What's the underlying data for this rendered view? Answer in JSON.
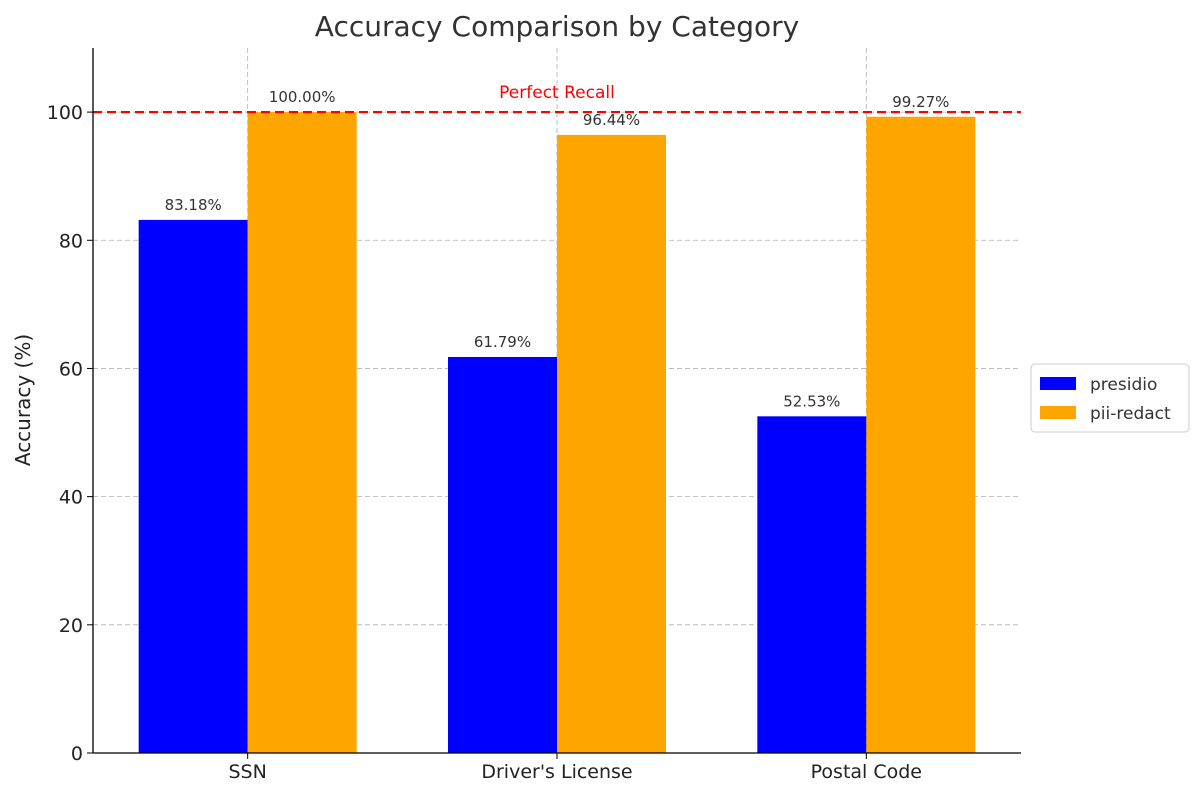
{
  "chart_data": {
    "type": "bar",
    "title": "Accuracy Comparison by Category",
    "xlabel": "",
    "ylabel": "Accuracy (%)",
    "ylim": [
      0,
      110
    ],
    "yticks": [
      0,
      20,
      40,
      60,
      80,
      100
    ],
    "grid": true,
    "legend_position": "right",
    "categories": [
      "SSN",
      "Driver's License",
      "Postal Code"
    ],
    "series": [
      {
        "name": "presidio",
        "color": "#0000ff",
        "values": [
          83.18,
          61.79,
          52.53
        ],
        "labels": [
          "83.18%",
          "61.79%",
          "52.53%"
        ]
      },
      {
        "name": "pii-redact",
        "color": "#ffa500",
        "values": [
          100.0,
          96.44,
          99.27
        ],
        "labels": [
          "100.00%",
          "96.44%",
          "99.27%"
        ]
      }
    ],
    "reference_line": {
      "value": 100,
      "label": "Perfect Recall",
      "color": "#ff0000",
      "style": "dashed"
    }
  }
}
